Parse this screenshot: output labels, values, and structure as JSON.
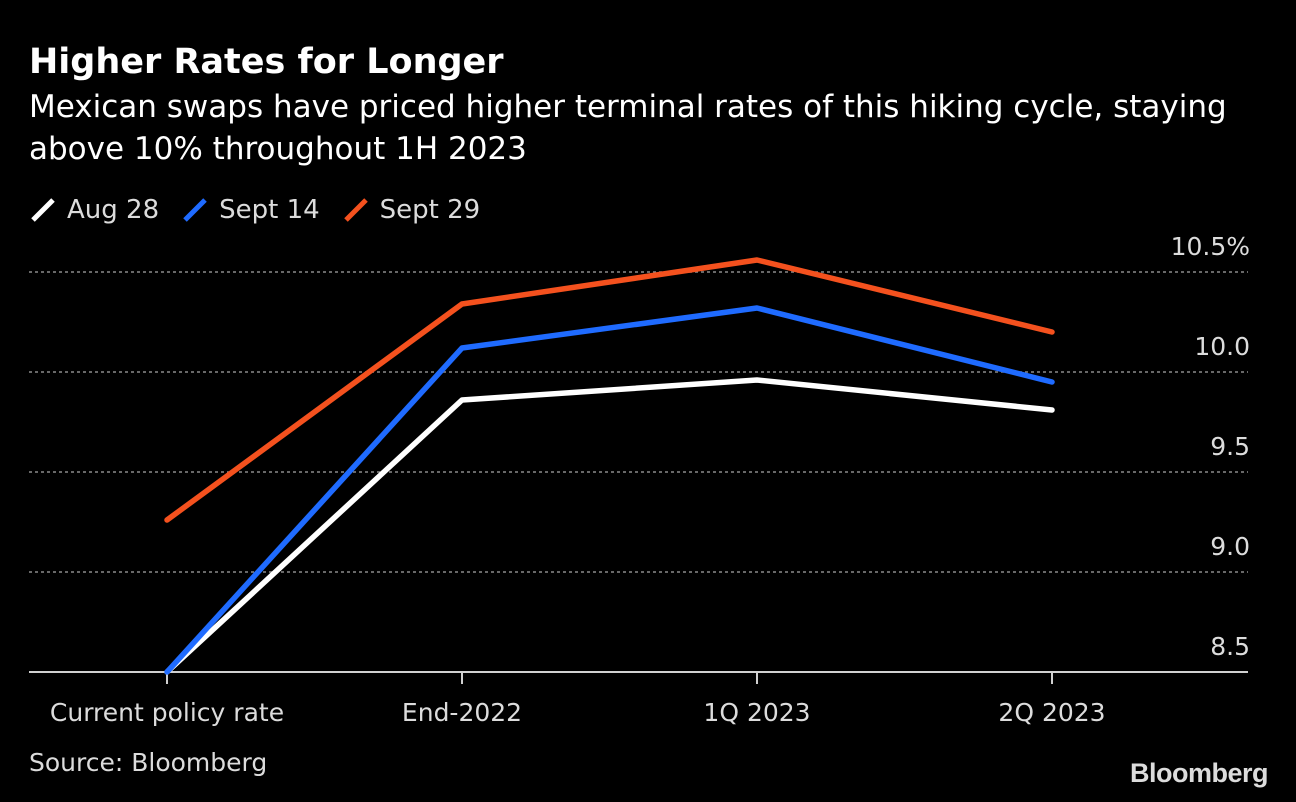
{
  "chart_data": {
    "type": "line",
    "title": "Higher Rates for Longer",
    "subtitle": "Mexican swaps have priced higher terminal rates of this hiking cycle, staying above 10% throughout 1H 2023",
    "categories": [
      "Current policy rate",
      "End-2022",
      "1Q 2023",
      "2Q 2023"
    ],
    "series": [
      {
        "name": "Aug 28",
        "color": "#ffffff",
        "values": [
          8.5,
          9.86,
          9.96,
          9.81
        ]
      },
      {
        "name": "Sept 14",
        "color": "#1f6bff",
        "values": [
          8.5,
          10.12,
          10.32,
          9.95
        ]
      },
      {
        "name": "Sept 29",
        "color": "#f4511e",
        "values": [
          9.26,
          10.34,
          10.56,
          10.2
        ]
      }
    ],
    "y_ticks": [
      "10.5%",
      "10.0",
      "9.5",
      "9.0",
      "8.5"
    ],
    "y_tick_values": [
      10.5,
      10.0,
      9.5,
      9.0,
      8.5
    ],
    "ylim": [
      8.5,
      10.5
    ],
    "grid": true,
    "legend_position": "top-left",
    "xlabel": "",
    "ylabel": "",
    "source": "Source: Bloomberg",
    "brand": "Bloomberg"
  }
}
